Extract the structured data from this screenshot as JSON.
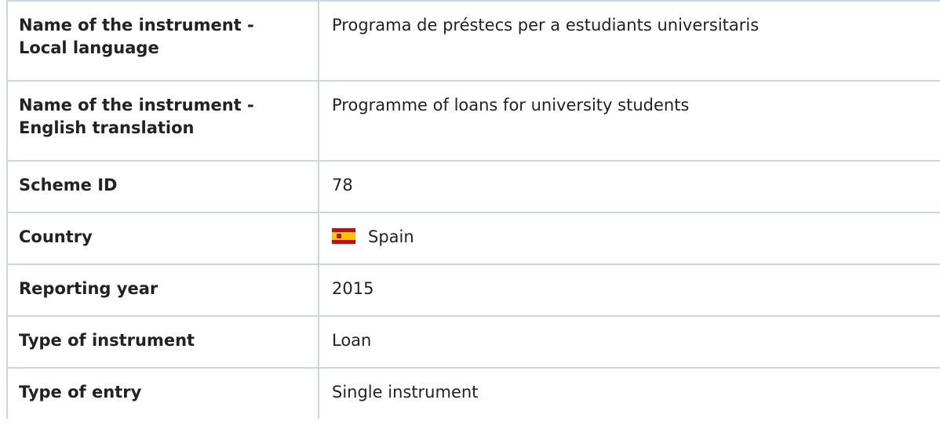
{
  "table": {
    "rows": [
      [
        "Name of the instrument - Local language",
        "Programa de préstecs per a estudiants universitaris"
      ],
      [
        "Name of the instrument - English translation",
        "Programme of loans for university students"
      ],
      [
        "Scheme ID",
        "78"
      ],
      [
        "Country",
        "Spain"
      ],
      [
        "Reporting year",
        "2015"
      ],
      [
        "Type of instrument",
        "Loan"
      ],
      [
        "Type of entry",
        "Single instrument"
      ]
    ]
  }
}
